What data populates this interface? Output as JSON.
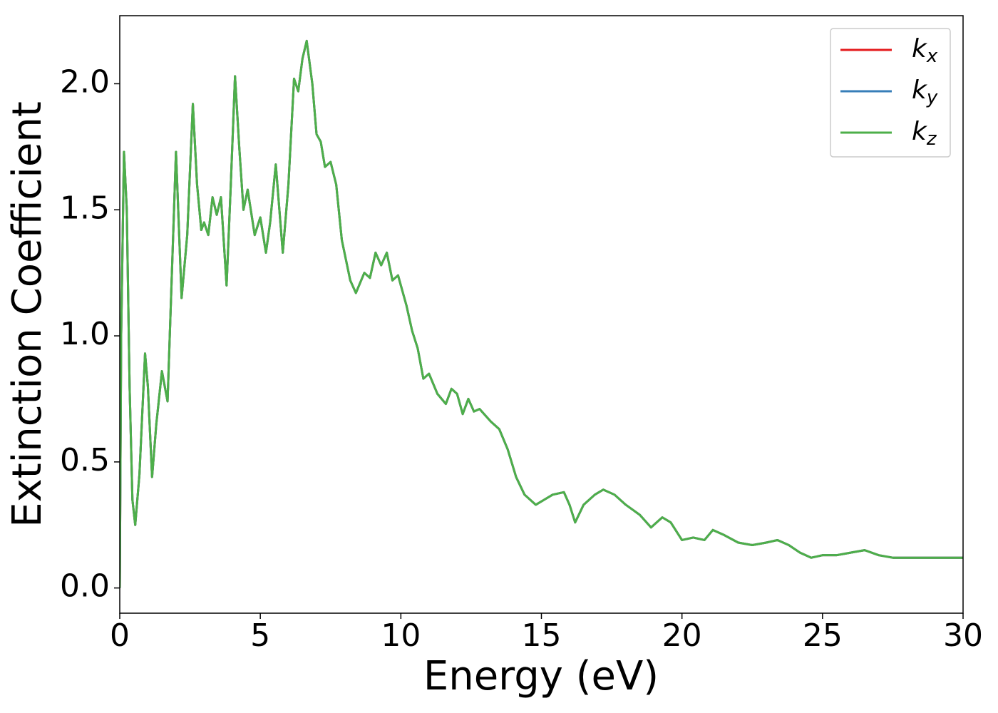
{
  "chart_data": {
    "type": "line",
    "xlabel": "Energy (eV)",
    "ylabel": "Extinction Coefficient",
    "x": [
      0,
      0.05,
      0.15,
      0.25,
      0.35,
      0.45,
      0.55,
      0.7,
      0.9,
      1.0,
      1.15,
      1.3,
      1.5,
      1.7,
      2.0,
      2.2,
      2.4,
      2.6,
      2.75,
      2.9,
      3.0,
      3.15,
      3.3,
      3.45,
      3.6,
      3.8,
      3.95,
      4.1,
      4.25,
      4.4,
      4.55,
      4.8,
      5.0,
      5.2,
      5.35,
      5.55,
      5.8,
      6.0,
      6.2,
      6.35,
      6.5,
      6.65,
      6.85,
      7.0,
      7.15,
      7.3,
      7.5,
      7.7,
      7.9,
      8.2,
      8.4,
      8.7,
      8.9,
      9.1,
      9.3,
      9.5,
      9.7,
      9.9,
      10.2,
      10.4,
      10.6,
      10.8,
      11.0,
      11.3,
      11.6,
      11.8,
      12.0,
      12.2,
      12.4,
      12.6,
      12.8,
      13.2,
      13.5,
      13.8,
      14.1,
      14.4,
      14.8,
      15.1,
      15.4,
      15.8,
      16.0,
      16.2,
      16.5,
      16.9,
      17.2,
      17.6,
      18.0,
      18.5,
      18.9,
      19.3,
      19.6,
      20.0,
      20.4,
      20.8,
      21.1,
      21.5,
      22.0,
      22.5,
      23.0,
      23.4,
      23.8,
      24.2,
      24.6,
      25.0,
      25.5,
      26.0,
      26.5,
      27.0,
      27.5,
      28.0,
      28.5,
      29.0,
      29.5,
      30.0
    ],
    "series": [
      {
        "name": "kx",
        "color": "#e41a1c",
        "values": [
          0,
          1.0,
          1.73,
          1.5,
          0.8,
          0.35,
          0.25,
          0.45,
          0.93,
          0.8,
          0.44,
          0.65,
          0.86,
          0.74,
          1.73,
          1.15,
          1.4,
          1.92,
          1.6,
          1.42,
          1.45,
          1.4,
          1.55,
          1.48,
          1.55,
          1.2,
          1.6,
          2.03,
          1.75,
          1.5,
          1.58,
          1.4,
          1.47,
          1.33,
          1.45,
          1.68,
          1.33,
          1.6,
          2.02,
          1.97,
          2.1,
          2.17,
          2.0,
          1.8,
          1.77,
          1.67,
          1.69,
          1.6,
          1.38,
          1.22,
          1.17,
          1.25,
          1.23,
          1.33,
          1.28,
          1.33,
          1.22,
          1.24,
          1.12,
          1.02,
          0.95,
          0.83,
          0.85,
          0.77,
          0.73,
          0.79,
          0.77,
          0.69,
          0.75,
          0.7,
          0.71,
          0.66,
          0.63,
          0.55,
          0.44,
          0.37,
          0.33,
          0.35,
          0.37,
          0.38,
          0.33,
          0.26,
          0.33,
          0.37,
          0.39,
          0.37,
          0.33,
          0.29,
          0.24,
          0.28,
          0.26,
          0.19,
          0.2,
          0.19,
          0.23,
          0.21,
          0.18,
          0.17,
          0.18,
          0.19,
          0.17,
          0.14,
          0.12,
          0.13,
          0.13,
          0.14,
          0.15,
          0.13,
          0.12,
          0.12,
          0.12,
          0.12,
          0.12,
          0.12
        ]
      },
      {
        "name": "ky",
        "color": "#377eb8",
        "values": [
          0,
          1.0,
          1.73,
          1.5,
          0.8,
          0.35,
          0.25,
          0.45,
          0.93,
          0.8,
          0.44,
          0.65,
          0.86,
          0.74,
          1.73,
          1.15,
          1.4,
          1.92,
          1.6,
          1.42,
          1.45,
          1.4,
          1.55,
          1.48,
          1.55,
          1.2,
          1.6,
          2.03,
          1.75,
          1.5,
          1.58,
          1.4,
          1.47,
          1.33,
          1.45,
          1.68,
          1.33,
          1.6,
          2.02,
          1.97,
          2.1,
          2.17,
          2.0,
          1.8,
          1.77,
          1.67,
          1.69,
          1.6,
          1.38,
          1.22,
          1.17,
          1.25,
          1.23,
          1.33,
          1.28,
          1.33,
          1.22,
          1.24,
          1.12,
          1.02,
          0.95,
          0.83,
          0.85,
          0.77,
          0.73,
          0.79,
          0.77,
          0.69,
          0.75,
          0.7,
          0.71,
          0.66,
          0.63,
          0.55,
          0.44,
          0.37,
          0.33,
          0.35,
          0.37,
          0.38,
          0.33,
          0.26,
          0.33,
          0.37,
          0.39,
          0.37,
          0.33,
          0.29,
          0.24,
          0.28,
          0.26,
          0.19,
          0.2,
          0.19,
          0.23,
          0.21,
          0.18,
          0.17,
          0.18,
          0.19,
          0.17,
          0.14,
          0.12,
          0.13,
          0.13,
          0.14,
          0.15,
          0.13,
          0.12,
          0.12,
          0.12,
          0.12,
          0.12,
          0.12
        ]
      },
      {
        "name": "kz",
        "color": "#4daf4a",
        "values": [
          0,
          1.0,
          1.73,
          1.5,
          0.8,
          0.35,
          0.25,
          0.45,
          0.93,
          0.8,
          0.44,
          0.65,
          0.86,
          0.74,
          1.73,
          1.15,
          1.4,
          1.92,
          1.6,
          1.42,
          1.45,
          1.4,
          1.55,
          1.48,
          1.55,
          1.2,
          1.6,
          2.03,
          1.75,
          1.5,
          1.58,
          1.4,
          1.47,
          1.33,
          1.45,
          1.68,
          1.33,
          1.6,
          2.02,
          1.97,
          2.1,
          2.17,
          2.0,
          1.8,
          1.77,
          1.67,
          1.69,
          1.6,
          1.38,
          1.22,
          1.17,
          1.25,
          1.23,
          1.33,
          1.28,
          1.33,
          1.22,
          1.24,
          1.12,
          1.02,
          0.95,
          0.83,
          0.85,
          0.77,
          0.73,
          0.79,
          0.77,
          0.69,
          0.75,
          0.7,
          0.71,
          0.66,
          0.63,
          0.55,
          0.44,
          0.37,
          0.33,
          0.35,
          0.37,
          0.38,
          0.33,
          0.26,
          0.33,
          0.37,
          0.39,
          0.37,
          0.33,
          0.29,
          0.24,
          0.28,
          0.26,
          0.19,
          0.2,
          0.19,
          0.23,
          0.21,
          0.18,
          0.17,
          0.18,
          0.19,
          0.17,
          0.14,
          0.12,
          0.13,
          0.13,
          0.14,
          0.15,
          0.13,
          0.12,
          0.12,
          0.12,
          0.12,
          0.12,
          0.12
        ]
      }
    ],
    "xlim": [
      0,
      30
    ],
    "xticks": [
      0,
      5,
      10,
      15,
      20,
      25,
      30
    ],
    "ylim": [
      -0.1,
      2.27
    ],
    "yticks": [
      {
        "value": 0,
        "label": "0.0"
      },
      {
        "value": 0.5,
        "label": "0.5"
      },
      {
        "value": 1,
        "label": "1.0"
      },
      {
        "value": 1.5,
        "label": "1.5"
      },
      {
        "value": 2,
        "label": "2.0"
      }
    ],
    "grid": false,
    "legend": "upper right"
  }
}
